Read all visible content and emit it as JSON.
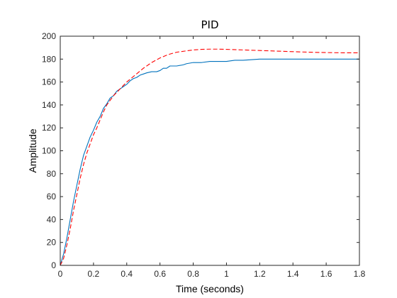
{
  "chart_data": {
    "type": "line",
    "title": "PID",
    "xlabel": "Time (seconds)",
    "ylabel": "Amplitude",
    "xlim": [
      0,
      1.8
    ],
    "ylim": [
      0,
      200
    ],
    "xticks": [
      "0",
      "0.2",
      "0.4",
      "0.6",
      "0.8",
      "1",
      "1.2",
      "1.4",
      "1.6",
      "1.8"
    ],
    "yticks": [
      "0",
      "20",
      "40",
      "60",
      "80",
      "100",
      "120",
      "140",
      "160",
      "180",
      "200"
    ],
    "grid": false,
    "legend": "none",
    "series": [
      {
        "color": "#0072bd",
        "line_style": "solid",
        "x": [
          0,
          0.02,
          0.04,
          0.06,
          0.08,
          0.1,
          0.12,
          0.14,
          0.16,
          0.18,
          0.2,
          0.22,
          0.24,
          0.26,
          0.28,
          0.3,
          0.32,
          0.34,
          0.36,
          0.38,
          0.4,
          0.42,
          0.44,
          0.46,
          0.48,
          0.5,
          0.52,
          0.55,
          0.58,
          0.6,
          0.62,
          0.64,
          0.66,
          0.7,
          0.74,
          0.76,
          0.8,
          0.85,
          0.9,
          0.95,
          1.0,
          1.05,
          1.1,
          1.2,
          1.4,
          1.6,
          1.8
        ],
        "y": [
          0,
          10,
          24,
          40,
          56,
          70,
          84,
          96,
          104,
          112,
          118,
          125,
          130,
          137,
          141,
          146,
          148,
          152,
          154,
          156,
          158,
          161,
          163,
          164,
          166,
          167,
          168,
          169,
          169,
          170,
          172,
          172,
          174,
          174,
          175,
          176,
          177,
          177,
          178,
          178,
          178,
          179,
          179,
          180,
          180,
          180,
          180
        ]
      },
      {
        "color": "#ff0000",
        "line_style": "dashed",
        "x": [
          0,
          0.02,
          0.04,
          0.06,
          0.08,
          0.1,
          0.12,
          0.14,
          0.16,
          0.18,
          0.2,
          0.22,
          0.24,
          0.26,
          0.28,
          0.3,
          0.32,
          0.34,
          0.36,
          0.38,
          0.4,
          0.45,
          0.5,
          0.55,
          0.6,
          0.65,
          0.7,
          0.75,
          0.8,
          0.85,
          0.9,
          0.95,
          1.0,
          1.1,
          1.2,
          1.3,
          1.4,
          1.5,
          1.6,
          1.7,
          1.8
        ],
        "y": [
          0,
          6,
          18,
          32,
          48,
          62,
          76,
          88,
          98,
          106,
          114,
          120,
          127,
          134,
          140,
          144,
          148,
          151,
          154,
          157,
          160,
          166,
          172,
          177,
          181,
          184,
          186,
          187,
          188,
          188.5,
          188.7,
          188.7,
          188.5,
          188,
          187.5,
          187,
          186.5,
          186,
          185.7,
          185.5,
          185.5
        ]
      }
    ]
  }
}
